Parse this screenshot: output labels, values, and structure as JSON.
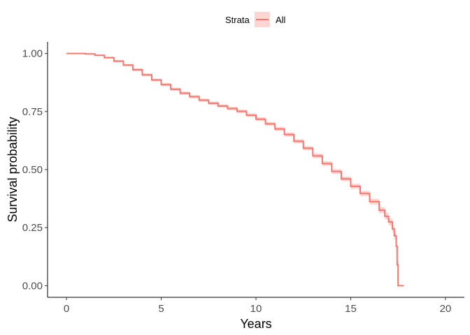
{
  "chart_data": {
    "type": "line",
    "xlabel": "Years",
    "ylabel": "Survival probability",
    "xlim": [
      -1,
      21
    ],
    "ylim": [
      -0.05,
      1.05
    ],
    "xticks": [
      0,
      5,
      10,
      15,
      20
    ],
    "xtick_labels": [
      "0",
      "5",
      "10",
      "15",
      "20"
    ],
    "yticks": [
      0,
      0.25,
      0.5,
      0.75,
      1.0
    ],
    "ytick_labels": [
      "0.00",
      "0.25",
      "0.50",
      "0.75",
      "1.00"
    ],
    "grid": false,
    "legend": {
      "position": "top",
      "title": "Strata",
      "entries": [
        "All"
      ]
    },
    "series": [
      {
        "name": "All",
        "color": "#f8766d",
        "band_color": "#f8766d",
        "x": [
          0,
          0.5,
          1,
          1.5,
          2,
          2.5,
          3,
          3.5,
          4,
          4.5,
          5,
          5.5,
          6,
          6.5,
          7,
          7.5,
          8,
          8.5,
          9,
          9.5,
          10,
          10.5,
          11,
          11.5,
          12,
          12.5,
          13,
          13.5,
          14,
          14.5,
          15,
          15.5,
          16,
          16.5,
          16.8,
          17.0,
          17.2,
          17.3,
          17.4,
          17.45,
          17.5,
          17.8
        ],
        "y": [
          1.0,
          1.0,
          0.998,
          0.992,
          0.982,
          0.967,
          0.95,
          0.93,
          0.908,
          0.886,
          0.866,
          0.846,
          0.829,
          0.814,
          0.799,
          0.786,
          0.774,
          0.763,
          0.751,
          0.734,
          0.717,
          0.697,
          0.675,
          0.651,
          0.622,
          0.592,
          0.559,
          0.526,
          0.492,
          0.46,
          0.428,
          0.397,
          0.362,
          0.325,
          0.299,
          0.275,
          0.245,
          0.215,
          0.17,
          0.09,
          0.0,
          0.0
        ],
        "ci_halfwidth": [
          0,
          0,
          0.002,
          0.003,
          0.004,
          0.005,
          0.005,
          0.006,
          0.006,
          0.006,
          0.007,
          0.007,
          0.007,
          0.007,
          0.007,
          0.007,
          0.007,
          0.008,
          0.008,
          0.008,
          0.008,
          0.008,
          0.009,
          0.009,
          0.009,
          0.009,
          0.01,
          0.01,
          0.01,
          0.01,
          0.011,
          0.011,
          0.012,
          0.013,
          0.014,
          0.015,
          0.016,
          0.016,
          0.017,
          0.017,
          0,
          0
        ]
      }
    ]
  }
}
